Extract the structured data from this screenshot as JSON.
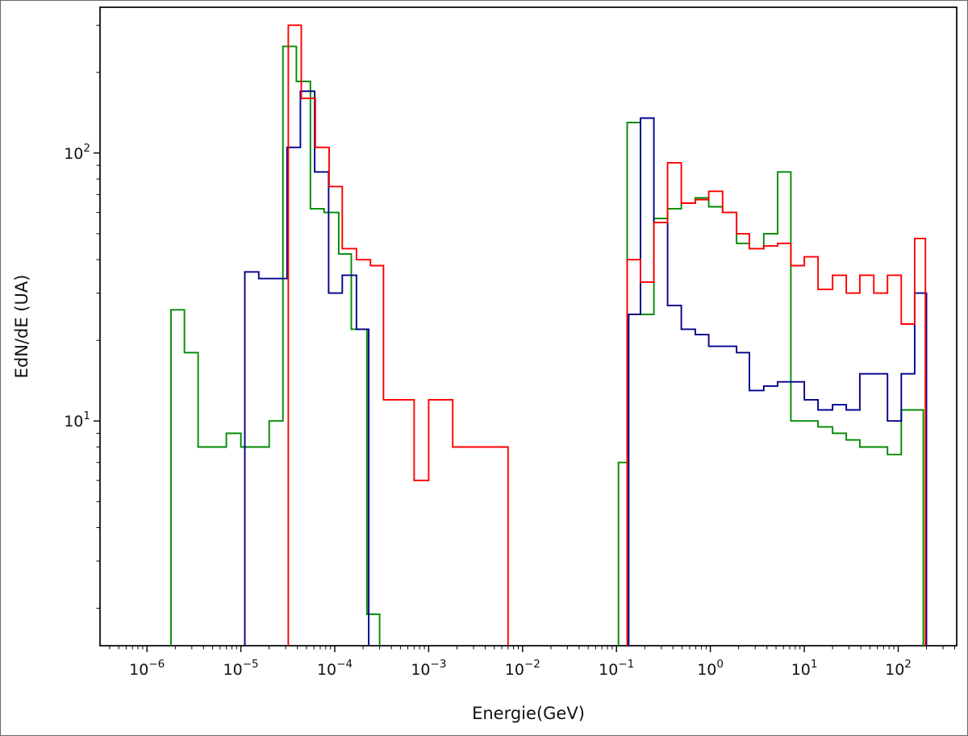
{
  "figure": {
    "background": "#ffffff",
    "outer_border_color": "#6b6b6b"
  },
  "chart_data": {
    "type": "line",
    "subtype": "step-histogram",
    "title": "",
    "xlabel": "Energie(GeV)",
    "ylabel": "EdN/dE (UA)",
    "xscale": "log",
    "yscale": "log",
    "grid": false,
    "legend": "none",
    "xlim": [
      3.16e-07,
      420.0
    ],
    "ylim": [
      1.45,
      350
    ],
    "x_tick_exponents": [
      -6,
      -5,
      -4,
      -3,
      -2,
      -1,
      0,
      1,
      2
    ],
    "y_tick_exponents": [
      1,
      2
    ],
    "frame_color": "#000000",
    "tick_color": "#000000",
    "text_color": "#111111",
    "series": [
      {
        "name": "green-histogram",
        "color": "#008a00",
        "segments": [
          {
            "edges": [
              1.8e-06,
              2.5e-06,
              3.5e-06,
              5e-06,
              7e-06,
              1e-05,
              1.4e-05,
              2e-05,
              2.8e-05,
              3.9e-05,
              5.5e-05,
              7.7e-05,
              0.00011,
              0.00015,
              0.00022,
              0.0003
            ],
            "values": [
              26,
              18,
              8,
              8,
              9,
              8,
              8,
              10,
              250,
              185,
              62,
              60,
              42,
              22,
              1.9
            ]
          },
          {
            "edges": [
              0.105,
              0.13,
              0.18,
              0.25,
              0.35,
              0.49,
              0.69,
              0.96,
              1.35,
              1.9,
              2.6,
              3.7,
              5.2,
              7.2,
              10,
              14,
              20,
              28,
              39,
              55,
              77,
              108,
              150,
              185
            ],
            "values": [
              7,
              130,
              25,
              57,
              62,
              65,
              68,
              63,
              60,
              46,
              44,
              50,
              85,
              10,
              10,
              9.5,
              9,
              8.5,
              8,
              8,
              7.5,
              11,
              11
            ]
          }
        ]
      },
      {
        "name": "blue-histogram",
        "color": "#00008b",
        "segments": [
          {
            "edges": [
              1.1e-05,
              1.55e-05,
              2.2e-05,
              3.1e-05,
              4.3e-05,
              6.1e-05,
              8.6e-05,
              0.00012,
              0.00017,
              0.00023
            ],
            "values": [
              36,
              34,
              34,
              105,
              170,
              85,
              30,
              35,
              22
            ]
          },
          {
            "edges": [
              0.135,
              0.18,
              0.25,
              0.35,
              0.49,
              0.69,
              0.96,
              1.35,
              1.9,
              2.6,
              3.7,
              5.2,
              7.2,
              10,
              14,
              20,
              28,
              39,
              55,
              77,
              108,
              150,
              200
            ],
            "values": [
              25,
              135,
              55,
              27,
              22,
              21,
              19,
              19,
              18,
              13,
              13.5,
              14,
              14,
              12,
              11,
              11.5,
              11,
              15,
              15,
              10,
              15,
              30
            ]
          }
        ]
      },
      {
        "name": "red-histogram",
        "color": "#fe0000",
        "segments": [
          {
            "edges": [
              3.2e-05,
              4.4e-05,
              6.2e-05,
              8.7e-05,
              0.00012,
              0.00017,
              0.00024,
              0.00033,
              0.0007,
              0.001,
              0.0018,
              0.007
            ],
            "values": [
              300,
              160,
              105,
              75,
              44,
              40,
              38,
              12,
              6,
              12,
              8
            ]
          },
          {
            "edges": [
              0.13,
              0.18,
              0.25,
              0.35,
              0.49,
              0.69,
              0.96,
              1.35,
              1.9,
              2.6,
              3.7,
              5.2,
              7.2,
              10,
              14,
              20,
              28,
              39,
              55,
              77,
              108,
              150,
              195
            ],
            "values": [
              40,
              33,
              55,
              92,
              65,
              67,
              72,
              60,
              50,
              44,
              45,
              46,
              38,
              41,
              31,
              35,
              30,
              35,
              30,
              35,
              23,
              48
            ]
          }
        ]
      }
    ]
  }
}
